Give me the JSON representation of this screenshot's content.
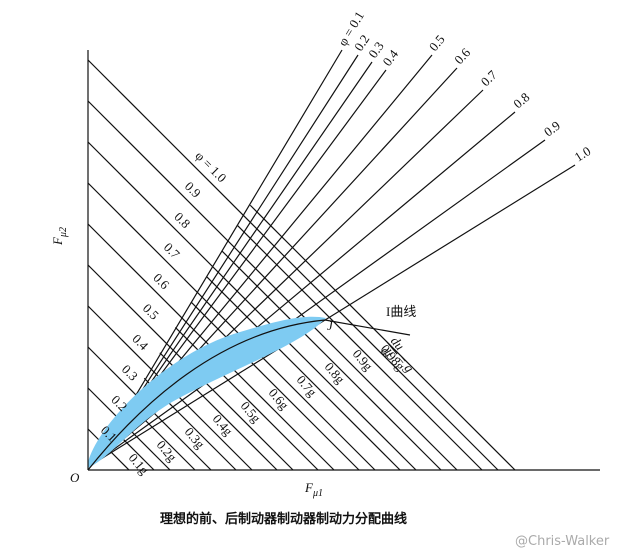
{
  "axes": {
    "origin": "O",
    "x_label": "F",
    "x_sub": "μ1",
    "y_label": "F",
    "y_sub": "μ2"
  },
  "phi_fan_labels": [
    "φ = 0.1",
    "0.2",
    "0.3",
    "0.4",
    "0.5",
    "0.6",
    "0.7",
    "0.8",
    "0.9",
    "1.0"
  ],
  "phi_diagonal_labels": [
    "0.1",
    "0.2",
    "0.3",
    "0.4",
    "0.5",
    "0.6",
    "0.7",
    "0.8",
    "0.9",
    "φ = 1.0"
  ],
  "g_labels": [
    "0.1g",
    "0.2g",
    "0.3g",
    "0.4g",
    "0.5g",
    "0.6g",
    "0.7g",
    "0.8g",
    "0.9g",
    "0.98g"
  ],
  "decel_label": {
    "numerator": "du",
    "denominator": "dt",
    "rhs": "= g"
  },
  "curve_label": "I曲线",
  "point_label": "J",
  "caption": "理想的前、后制动器制动器制动力分配曲线",
  "watermark": "@Chris-Walker"
}
